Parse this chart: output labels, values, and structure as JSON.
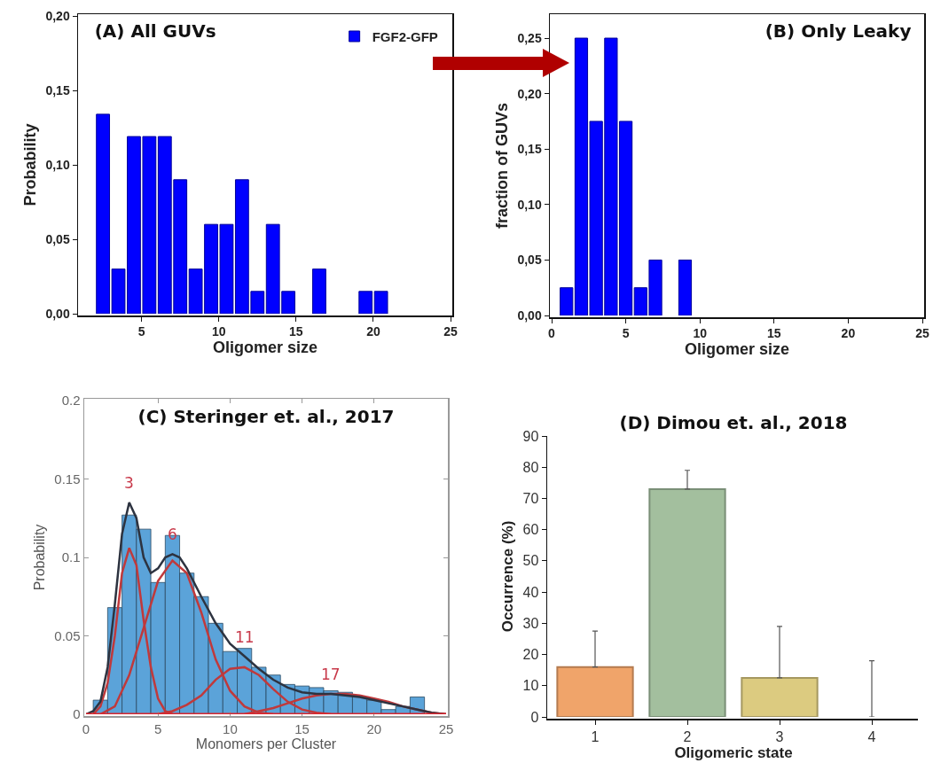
{
  "chart_data": [
    {
      "type": "bar",
      "title": "(A) All GUVs",
      "xlabel": "Oligomer size",
      "ylabel": "Probability",
      "x": [
        2.5,
        3.5,
        4.5,
        5.5,
        6.5,
        7.5,
        8.5,
        9.5,
        10.5,
        11.5,
        12.5,
        13.5,
        14.5,
        16.5,
        19.5,
        20.5
      ],
      "series": [
        {
          "name": "FGF2-GFP",
          "color": "#0000ff",
          "values": [
            0.134,
            0.03,
            0.119,
            0.119,
            0.119,
            0.09,
            0.03,
            0.06,
            0.06,
            0.09,
            0.015,
            0.06,
            0.015,
            0.03,
            0.015,
            0.015
          ]
        }
      ],
      "xlim": [
        1,
        25
      ],
      "xticks": [
        5,
        10,
        15,
        20,
        25
      ],
      "ylim": [
        0,
        0.2
      ],
      "yticks": [
        {
          "value": 0,
          "label": "0,00"
        },
        {
          "value": 0.05,
          "label": "0,05"
        },
        {
          "value": 0.1,
          "label": "0,10"
        },
        {
          "value": 0.15,
          "label": "0,15"
        },
        {
          "value": 0.2,
          "label": "0,20"
        }
      ],
      "legend": "top right",
      "grid": false
    },
    {
      "type": "bar",
      "title": "(B) Only Leaky",
      "xlabel": "Oligomer size",
      "ylabel": "fraction of GUVs",
      "x": [
        1,
        2,
        3,
        4,
        5,
        6,
        7,
        9
      ],
      "series": [
        {
          "color": "#0000ff",
          "values": [
            0.025,
            0.25,
            0.175,
            0.25,
            0.175,
            0.025,
            0.05,
            0.05
          ]
        }
      ],
      "xlim": [
        0,
        25
      ],
      "xticks": [
        0,
        5,
        10,
        15,
        20,
        25
      ],
      "ylim": [
        0,
        0.27
      ],
      "yticks": [
        {
          "value": 0,
          "label": "0,00"
        },
        {
          "value": 0.05,
          "label": "0,05"
        },
        {
          "value": 0.1,
          "label": "0,10"
        },
        {
          "value": 0.15,
          "label": "0,15"
        },
        {
          "value": 0.2,
          "label": "0,20"
        },
        {
          "value": 0.25,
          "label": "0,25"
        }
      ],
      "legend": false,
      "grid": false
    },
    {
      "type": "histogram",
      "title": "(C) Steringer et. al., 2017",
      "xlabel": "Monomers per Cluster",
      "ylabel": "Probability",
      "bins": [
        0.5,
        1.5,
        2.5,
        3.5,
        4.5,
        5.5,
        6.5,
        7.5,
        8.5,
        9.5,
        10.5,
        11.5,
        12.5,
        13.5,
        14.5,
        15.5,
        16.5,
        17.5,
        18.5,
        19.5,
        20.5,
        21.5,
        22.5,
        23.5
      ],
      "values": [
        0.009,
        0.068,
        0.127,
        0.118,
        0.084,
        0.114,
        0.09,
        0.075,
        0.058,
        0.04,
        0.042,
        0.03,
        0.025,
        0.019,
        0.018,
        0.017,
        0.015,
        0.014,
        0.011,
        0.009,
        0.003,
        0.005,
        0.011
      ],
      "color": "#5ba3d9",
      "series": [
        {
          "type": "line",
          "color": "#c0393b",
          "x": [
            0.5,
            1,
            1.5,
            2,
            2.5,
            3,
            3.5,
            4,
            4.5,
            5,
            5.5,
            6
          ],
          "values": [
            0,
            0.005,
            0.02,
            0.05,
            0.09,
            0.106,
            0.095,
            0.06,
            0.03,
            0.01,
            0.002,
            0
          ]
        },
        {
          "type": "line",
          "color": "#c0393b",
          "x": [
            1,
            2,
            3,
            4,
            5,
            6,
            7,
            8,
            9,
            10,
            11,
            12,
            13
          ],
          "values": [
            0,
            0.005,
            0.025,
            0.055,
            0.085,
            0.098,
            0.09,
            0.065,
            0.035,
            0.015,
            0.005,
            0.001,
            0
          ]
        },
        {
          "type": "line",
          "color": "#c0393b",
          "x": [
            5,
            6,
            7,
            8,
            9,
            10,
            11,
            12,
            13,
            14,
            15,
            16,
            17
          ],
          "values": [
            0,
            0.002,
            0.006,
            0.012,
            0.022,
            0.029,
            0.03,
            0.025,
            0.016,
            0.008,
            0.003,
            0.001,
            0
          ]
        },
        {
          "type": "line",
          "color": "#c0393b",
          "x": [
            11,
            12,
            13,
            14,
            15,
            16,
            17,
            18,
            19,
            20,
            21,
            22,
            23,
            24,
            25
          ],
          "values": [
            0,
            0.002,
            0.004,
            0.007,
            0.01,
            0.012,
            0.013,
            0.013,
            0.012,
            0.01,
            0.008,
            0.005,
            0.003,
            0.001,
            0
          ]
        },
        {
          "type": "line",
          "color": "#2d3340",
          "x": [
            0,
            0.5,
            1,
            1.5,
            2,
            2.5,
            3,
            3.5,
            4,
            4.5,
            5,
            5.5,
            6,
            6.5,
            7,
            8,
            9,
            10,
            11,
            12,
            13,
            14,
            15,
            16,
            17,
            18,
            19,
            20,
            21,
            22,
            23,
            24,
            25
          ],
          "values": [
            0,
            0.002,
            0.008,
            0.03,
            0.07,
            0.115,
            0.135,
            0.125,
            0.1,
            0.09,
            0.093,
            0.1,
            0.102,
            0.1,
            0.093,
            0.075,
            0.058,
            0.045,
            0.037,
            0.029,
            0.022,
            0.017,
            0.014,
            0.013,
            0.013,
            0.012,
            0.011,
            0.009,
            0.007,
            0.005,
            0.003,
            0.001,
            0
          ]
        }
      ],
      "annotations": [
        {
          "text": "3",
          "x": 3,
          "y": 0.135
        },
        {
          "text": "6",
          "x": 6,
          "y": 0.102
        },
        {
          "text": "11",
          "x": 11,
          "y": 0.037
        },
        {
          "text": "17",
          "x": 17,
          "y": 0.013
        }
      ],
      "ref_lines": [
        {
          "axis": "y",
          "value": 0,
          "color": "#d9262e"
        }
      ],
      "xlim": [
        0,
        25
      ],
      "xticks": [
        0,
        5,
        10,
        15,
        20,
        25
      ],
      "ylim": [
        0,
        0.2
      ],
      "yticks": [
        0,
        0.05,
        0.1,
        0.15,
        0.2
      ],
      "legend": false,
      "grid": false
    },
    {
      "type": "bar",
      "title": "(D) Dimou et. al., 2018",
      "xlabel": "Oligomeric state",
      "ylabel": "Occurrence (%)",
      "categories": [
        "1",
        "2",
        "3",
        "4"
      ],
      "values": [
        16,
        73,
        12.5,
        0
      ],
      "colors": [
        "#f0a46a",
        "#a3bf9e",
        "#dccb80",
        null
      ],
      "errors": [
        [
          16,
          27.5
        ],
        [
          73,
          79
        ],
        [
          12.5,
          29
        ],
        [
          0,
          18
        ]
      ],
      "ylim": [
        0,
        90
      ],
      "yticks": [
        0,
        10,
        20,
        30,
        40,
        50,
        60,
        70,
        80,
        90
      ],
      "legend": false,
      "grid": false
    }
  ]
}
